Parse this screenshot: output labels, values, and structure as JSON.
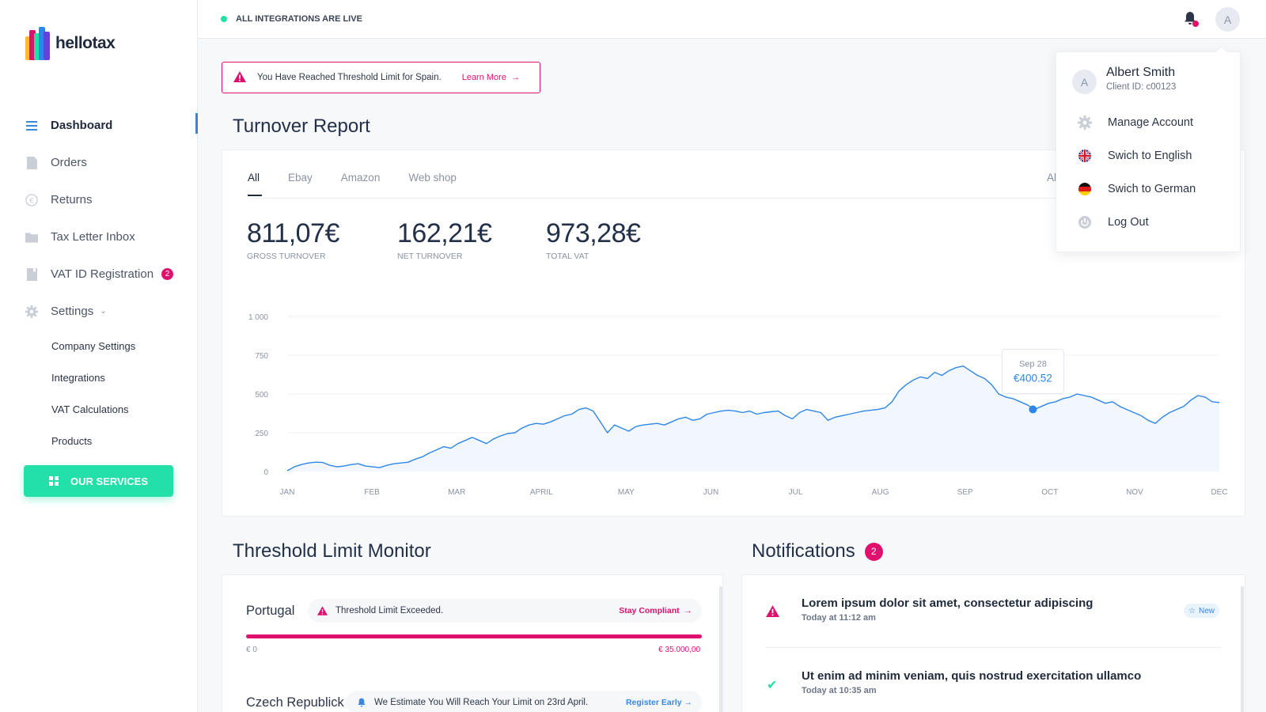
{
  "brand": {
    "name": "hellotax"
  },
  "status": {
    "text": "ALL INTEGRATIONS ARE LIVE"
  },
  "user": {
    "initial": "A",
    "name": "Albert Smith",
    "client_id": "Client ID: c00123"
  },
  "sidebar": {
    "items": [
      {
        "label": "Dashboard",
        "icon": "dashboard-icon"
      },
      {
        "label": "Orders",
        "icon": "document-icon"
      },
      {
        "label": "Returns",
        "icon": "euro-icon"
      },
      {
        "label": "Tax Letter Inbox",
        "icon": "folder-icon"
      },
      {
        "label": "VAT ID Registration",
        "icon": "file-icon",
        "badge": "2"
      },
      {
        "label": "Settings",
        "icon": "gear-icon"
      }
    ],
    "sub_items": [
      "Company Settings",
      "Integrations",
      "VAT Calculations",
      "Products"
    ],
    "services_label": "OUR SERVICES"
  },
  "alert": {
    "text": "You Have Reached Threshold Limit for Spain.",
    "link": "Learn More"
  },
  "turnover": {
    "title": "Turnover Report",
    "tabs": [
      "All",
      "Ebay",
      "Amazon",
      "Web shop"
    ],
    "right_tab": "Al",
    "stats": [
      {
        "value": "811,07€",
        "label": "GROSS TURNOVER"
      },
      {
        "value": "162,21€",
        "label": "NET TURNOVER"
      },
      {
        "value": "973,28€",
        "label": "TOTAL VAT"
      }
    ],
    "tooltip": {
      "date": "Sep 28",
      "value": "€400.52"
    }
  },
  "dropdown": {
    "items": [
      "Manage Account",
      "Swich to English",
      "Swich to German",
      "Log Out"
    ]
  },
  "threshold": {
    "title": "Threshold Limit Monitor",
    "rows": [
      {
        "country": "Portugal",
        "message": "Threshold Limit Exceeded.",
        "action": "Stay Compliant",
        "min": "€ 0",
        "max": "€ 35.000,00",
        "fill": 1.0
      },
      {
        "country": "Czech Republick",
        "message": "We Estimate You Will Reach Your Limit on 23rd April.",
        "action": "Register Early"
      }
    ]
  },
  "notifications": {
    "title": "Notifications",
    "count": "2",
    "items": [
      {
        "title": "Lorem ipsum dolor sit amet, consectetur adipiscing",
        "time": "Today at 11:12 am",
        "badge": "New",
        "icon": "warning-icon"
      },
      {
        "title": "Ut enim ad minim veniam, quis nostrud exercitation ullamco",
        "time": "Today at 10:35 am",
        "icon": "check-icon"
      }
    ]
  },
  "chart_data": {
    "type": "area",
    "x_ticks": [
      "JAN",
      "FEB",
      "MAR",
      "APRIL",
      "MAY",
      "JUN",
      "JUL",
      "AUG",
      "SEP",
      "OCT",
      "NOV",
      "DEC"
    ],
    "y_ticks": [
      "0",
      "250",
      "500",
      "750",
      "1 000"
    ],
    "ylim": [
      0,
      1000
    ],
    "grid": true,
    "color": "#2f86e6",
    "highlight": {
      "month_index": 8.8,
      "value": 400.52
    },
    "series": [
      {
        "values": [
          5,
          30,
          45,
          55,
          60,
          58,
          40,
          30,
          35,
          45,
          50,
          35,
          30,
          25,
          40,
          50,
          55,
          60,
          80,
          95,
          120,
          140,
          160,
          150,
          180,
          200,
          220,
          200,
          180,
          210,
          230,
          245,
          250,
          280,
          300,
          310,
          305,
          320,
          340,
          360,
          370,
          400,
          410,
          390,
          320,
          250,
          300,
          280,
          260,
          290,
          300,
          305,
          310,
          300,
          320,
          340,
          350,
          330,
          340,
          370,
          380,
          390,
          395,
          390,
          380,
          390,
          370,
          380,
          385,
          390,
          360,
          340,
          380,
          400,
          390,
          380,
          330,
          350,
          360,
          370,
          380,
          390,
          395,
          400,
          410,
          450,
          520,
          560,
          590,
          610,
          600,
          640,
          620,
          650,
          670,
          680,
          650,
          620,
          600,
          560,
          500,
          480,
          470,
          450,
          430,
          400,
          420,
          440,
          450,
          470,
          480,
          500,
          490,
          480,
          460,
          440,
          450,
          420,
          400,
          380,
          360,
          330,
          310,
          350,
          380,
          400,
          420,
          460,
          490,
          480,
          450,
          445
        ]
      }
    ]
  }
}
